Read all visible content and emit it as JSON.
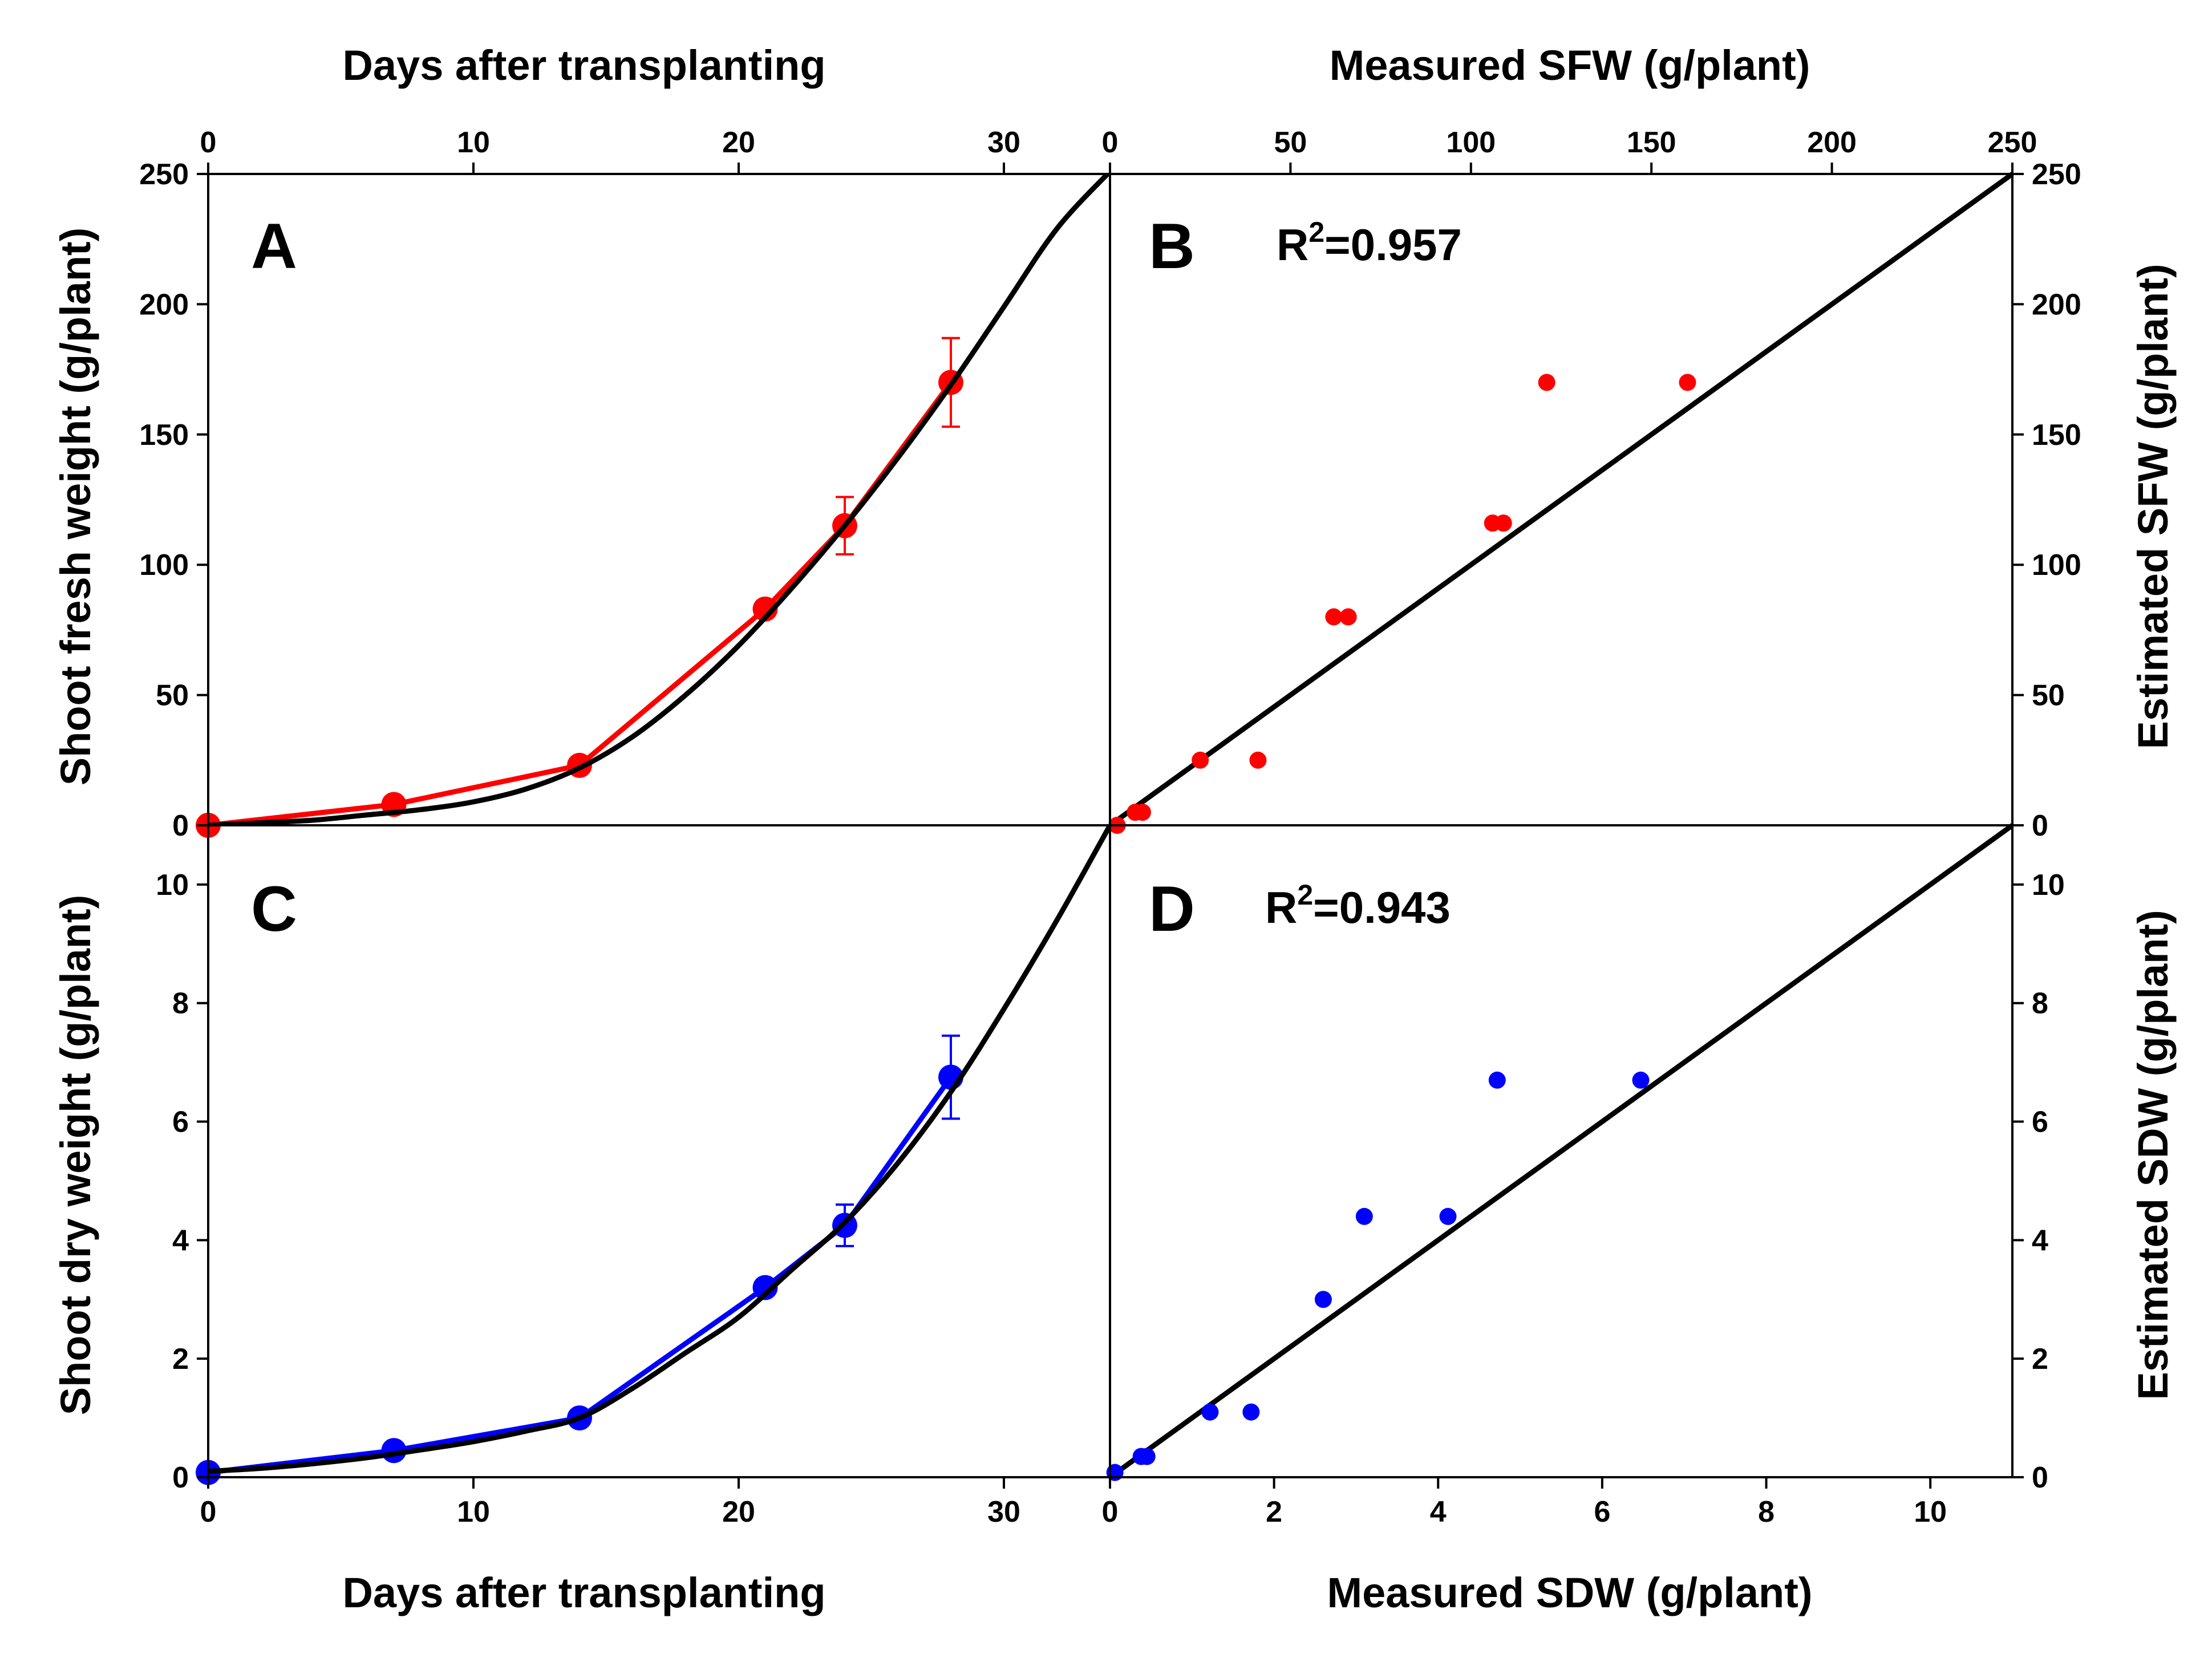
{
  "chart_data": [
    {
      "panel": "A",
      "type": "line",
      "xlabel": "Days after transplanting",
      "ylabel": "Shoot fresh weight (g/plant)",
      "xlim": [
        0,
        34
      ],
      "ylim": [
        0,
        250
      ],
      "xticks": [
        0,
        10,
        20,
        30
      ],
      "yticks": [
        0,
        50,
        100,
        150,
        200,
        250
      ],
      "x_axis_position": "top",
      "y_axis_position": "left",
      "series": [
        {
          "kind": "observed",
          "color": "#ff0000",
          "x": [
            0,
            7,
            14,
            21,
            24,
            28
          ],
          "y": [
            0,
            8,
            23,
            83,
            115,
            170
          ],
          "error": [
            0,
            1,
            2,
            3,
            11,
            17
          ]
        },
        {
          "kind": "model",
          "color": "#000000",
          "x": [
            0,
            2,
            4,
            6,
            8,
            10,
            12,
            14,
            16,
            18,
            20,
            22,
            24,
            26,
            28,
            30,
            32,
            34
          ],
          "y": [
            0,
            1,
            2,
            4,
            6,
            9,
            14,
            22,
            34,
            50,
            69,
            91,
            115,
            141,
            169,
            199,
            229,
            251
          ]
        }
      ]
    },
    {
      "panel": "B",
      "type": "scatter",
      "xlabel": "Measured SFW (g/plant)",
      "ylabel": "Estimated SFW (g/plant)",
      "annotation": "R",
      "annotation_sup": "2",
      "annotation_value": "=0.957",
      "xlim": [
        0,
        250
      ],
      "ylim": [
        0,
        250
      ],
      "xticks": [
        0,
        50,
        100,
        150,
        200,
        250
      ],
      "yticks": [
        0,
        50,
        100,
        150,
        200,
        250
      ],
      "x_axis_position": "top",
      "y_axis_position": "right",
      "points": {
        "color": "#ff0000",
        "x": [
          2,
          7,
          9,
          25,
          41,
          62,
          66,
          106,
          109,
          121,
          160
        ],
        "y": [
          0,
          5,
          5,
          25,
          25,
          80,
          80,
          116,
          116,
          170,
          170
        ]
      },
      "reference_line": {
        "color": "#000000",
        "x": [
          0,
          250
        ],
        "y": [
          0,
          250
        ]
      }
    },
    {
      "panel": "C",
      "type": "line",
      "xlabel": "Days after transplanting",
      "ylabel": "Shoot dry weight (g/plant)",
      "xlim": [
        0,
        34
      ],
      "ylim": [
        0,
        11
      ],
      "xticks": [
        0,
        10,
        20,
        30
      ],
      "yticks": [
        0,
        2,
        4,
        6,
        8,
        10
      ],
      "x_axis_position": "bottom",
      "y_axis_position": "left",
      "series": [
        {
          "kind": "observed",
          "color": "#0000ff",
          "x": [
            0,
            7,
            14,
            21,
            24,
            28
          ],
          "y": [
            0.08,
            0.45,
            1.0,
            3.2,
            4.25,
            6.75
          ],
          "error": [
            0.02,
            0.05,
            0.1,
            0.1,
            0.35,
            0.7
          ]
        },
        {
          "kind": "model",
          "color": "#000000",
          "x": [
            0,
            2,
            4,
            6,
            8,
            10,
            12,
            14,
            16,
            18,
            20,
            22,
            24,
            26,
            28,
            30,
            32,
            34
          ],
          "y": [
            0.1,
            0.15,
            0.23,
            0.33,
            0.46,
            0.6,
            0.78,
            1.0,
            1.5,
            2.1,
            2.7,
            3.5,
            4.3,
            5.3,
            6.5,
            7.9,
            9.4,
            11.0
          ]
        }
      ]
    },
    {
      "panel": "D",
      "type": "scatter",
      "xlabel": "Measured SDW (g/plant)",
      "ylabel": "Estimated SDW (g/plant)",
      "annotation": "R",
      "annotation_sup": "2",
      "annotation_value": "=0.943",
      "xlim": [
        0,
        11
      ],
      "ylim": [
        0,
        11
      ],
      "xticks": [
        0,
        2,
        4,
        6,
        8,
        10
      ],
      "yticks": [
        0,
        2,
        4,
        6,
        8,
        10
      ],
      "x_axis_position": "bottom",
      "y_axis_position": "right",
      "points": {
        "color": "#0000ff",
        "x": [
          0.06,
          0.38,
          0.45,
          1.22,
          1.72,
          2.6,
          3.1,
          4.12,
          4.72,
          6.47
        ],
        "y": [
          0.08,
          0.35,
          0.35,
          1.1,
          1.1,
          3.0,
          4.4,
          4.4,
          6.7,
          6.7
        ]
      },
      "reference_line": {
        "color": "#000000",
        "x": [
          0,
          11
        ],
        "y": [
          0,
          11
        ]
      }
    }
  ]
}
